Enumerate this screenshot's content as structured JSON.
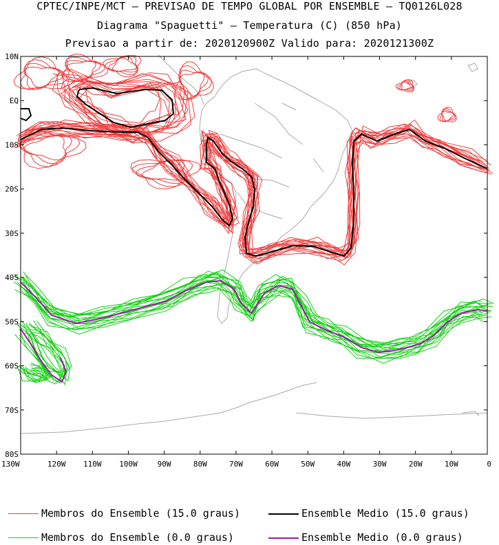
{
  "header": {
    "line1": "CPTEC/INPE/MCT — PREVISAO DE TEMPO GLOBAL POR ENSEMBLE — TQ0126L028",
    "line2": "Diagrama \"Spaguetti\" — Temperatura (C) (850 hPa)",
    "line3": "Previsao a partir de: 2020120900Z  Valido para: 2020121300Z"
  },
  "axes": {
    "lat_labels": [
      "10N",
      "EQ",
      "10S",
      "20S",
      "30S",
      "40S",
      "50S",
      "60S",
      "70S",
      "80S"
    ],
    "lon_labels": [
      "130W",
      "120W",
      "110W",
      "100W",
      "90W",
      "80W",
      "70W",
      "60W",
      "50W",
      "40W",
      "30W",
      "20W",
      "10W",
      "0"
    ]
  },
  "legend": {
    "members_15": "Membros do Ensemble (15.0 graus)",
    "mean_15": "Ensemble Medio (15.0 graus)",
    "members_0": "Membros do Ensemble (0.0 graus)",
    "mean_0": "Ensemble Medio (0.0 graus)"
  },
  "colors": {
    "members_15": "#f03c3c",
    "mean_15": "#000000",
    "members_0": "#10d010",
    "mean_0": "#9a1aa8",
    "coast": "#a8a8a8"
  }
}
